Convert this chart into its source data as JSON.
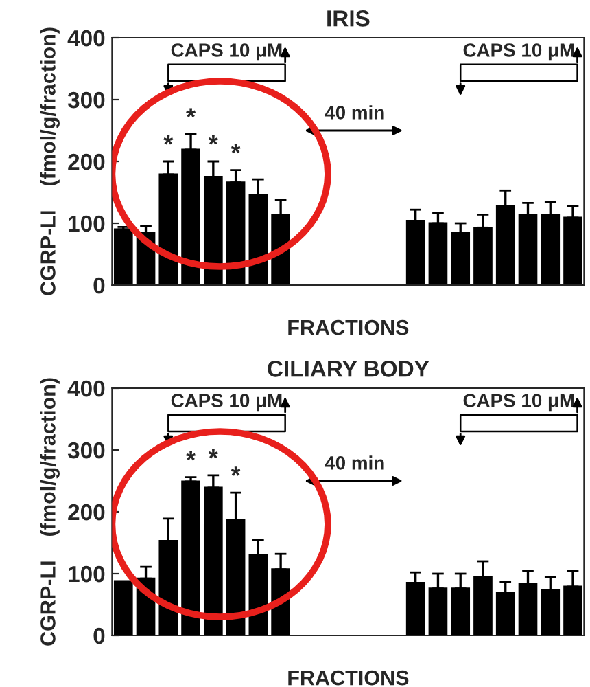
{
  "chart_data": [
    {
      "type": "bar",
      "title": "IRIS",
      "xlabel": "FRACTIONS",
      "ylabel": "CGRP-LI    (fmol/g/fraction)",
      "ylim": [
        0,
        400
      ],
      "yticks": [
        0,
        100,
        200,
        300,
        400
      ],
      "tick_labels": "y",
      "grid": false,
      "legend": false,
      "categories": [
        null,
        null,
        null,
        null,
        null,
        null,
        null,
        null,
        null,
        null,
        null,
        null,
        null,
        null,
        null,
        null,
        null,
        null,
        null,
        null,
        null
      ],
      "series": [
        {
          "color": "#000000",
          "values": [
            90,
            85,
            179,
            219,
            175,
            166,
            146,
            113,
            null,
            null,
            null,
            null,
            null,
            104,
            100,
            85,
            93,
            128,
            113,
            113,
            109
          ],
          "errors": [
            [
              90,
              94
            ],
            [
              85,
              96
            ],
            [
              179,
              200
            ],
            [
              219,
              244
            ],
            [
              175,
              200
            ],
            [
              166,
              186
            ],
            [
              146,
              171
            ],
            [
              113,
              138
            ],
            null,
            null,
            null,
            null,
            null,
            [
              104,
              122
            ],
            [
              100,
              117
            ],
            [
              85,
              100
            ],
            [
              93,
              114
            ],
            [
              128,
              153
            ],
            [
              113,
              133
            ],
            [
              113,
              135
            ],
            [
              109,
              128
            ]
          ],
          "value_labels": [
            null,
            null,
            "*",
            "*",
            "*",
            "*",
            null,
            null,
            null,
            null,
            null,
            null,
            null,
            null,
            null,
            null,
            null,
            null,
            null,
            null,
            null
          ]
        }
      ],
      "annotations": [
        "CAPS 10 μM",
        "40 min",
        "CAPS 10 μM"
      ]
    },
    {
      "type": "bar",
      "title": "CILIARY BODY",
      "xlabel": "FRACTIONS",
      "ylabel": "CGRP-LI    (fmol/g/fraction)",
      "ylim": [
        0,
        400
      ],
      "yticks": [
        0,
        100,
        200,
        300,
        400
      ],
      "tick_labels": "y",
      "grid": false,
      "legend": false,
      "categories": [
        null,
        null,
        null,
        null,
        null,
        null,
        null,
        null,
        null,
        null,
        null,
        null,
        null,
        null,
        null,
        null,
        null,
        null,
        null,
        null,
        null
      ],
      "series": [
        {
          "color": "#000000",
          "values": [
            88,
            92,
            153,
            249,
            239,
            187,
            130,
            107,
            null,
            null,
            null,
            null,
            null,
            85,
            76,
            76,
            95,
            69,
            84,
            73,
            79
          ],
          "errors": [
            null,
            [
              92,
              111
            ],
            [
              153,
              189
            ],
            [
              249,
              256
            ],
            [
              239,
              259
            ],
            [
              187,
              231
            ],
            [
              130,
              154
            ],
            [
              107,
              132
            ],
            null,
            null,
            null,
            null,
            null,
            [
              85,
              102
            ],
            [
              76,
              100
            ],
            [
              76,
              100
            ],
            [
              95,
              120
            ],
            [
              69,
              87
            ],
            [
              84,
              105
            ],
            [
              73,
              94
            ],
            [
              79,
              105
            ]
          ],
          "value_labels": [
            null,
            null,
            null,
            "*",
            "*",
            "*",
            null,
            null,
            null,
            null,
            null,
            null,
            null,
            null,
            null,
            null,
            null,
            null,
            null,
            null,
            null
          ]
        }
      ],
      "annotations": [
        "CAPS 10 μM",
        "40 min",
        "CAPS 10 μM"
      ]
    }
  ]
}
